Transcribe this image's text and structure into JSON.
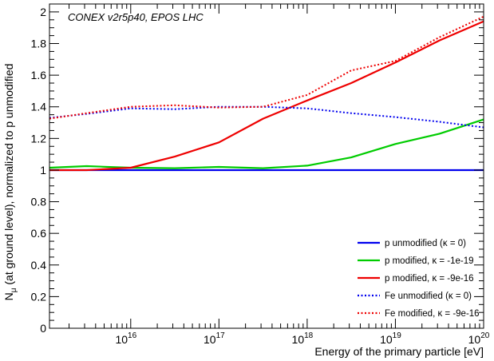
{
  "chart_data": {
    "type": "line",
    "title": "",
    "annotation": "CONEX v2r5p40, EPOS LHC",
    "xlabel": "Energy of the primary particle [eV]",
    "ylabel_main": "N",
    "ylabel_sub": "μ",
    "ylabel_rest": " (at ground level), normalized to p unmodified",
    "x_scale": "log",
    "xlim": [
      1200000000000000.0,
      1e+20
    ],
    "ylim": [
      0,
      2.05
    ],
    "grid": false,
    "legend_position": "bottom-right",
    "y_ticks": [
      0,
      0.2,
      0.4,
      0.6,
      0.8,
      1,
      1.2,
      1.4,
      1.6,
      1.8,
      2
    ],
    "y_tick_labels": [
      "0",
      "0.2",
      "0.4",
      "0.6",
      "0.8",
      "1",
      "1.2",
      "1.4",
      "1.6",
      "1.8",
      "2"
    ],
    "x_major_ticks": [
      {
        "value": 1e+16,
        "base": "10",
        "exp": "16"
      },
      {
        "value": 1e+17,
        "base": "10",
        "exp": "17"
      },
      {
        "value": 1e+18,
        "base": "10",
        "exp": "18"
      },
      {
        "value": 1e+19,
        "base": "10",
        "exp": "19"
      },
      {
        "value": 1e+20,
        "base": "10",
        "exp": "20"
      }
    ],
    "series": [
      {
        "name": "p unmodified (κ = 0)",
        "color": "#0000ee",
        "style": "solid",
        "x": [
          1200000000000000.0,
          3160000000000000.0,
          1e+16,
          3.16e+16,
          1e+17,
          3.16e+17,
          1e+18,
          3.16e+18,
          1e+19,
          3.16e+19,
          1e+20
        ],
        "y": [
          1.0,
          1.0,
          1.0,
          1.0,
          1.0,
          1.0,
          1.0,
          1.0,
          1.0,
          1.0,
          1.0
        ]
      },
      {
        "name": "p modified, κ = -1e-19",
        "color": "#00cc00",
        "style": "solid",
        "x": [
          1200000000000000.0,
          3160000000000000.0,
          1e+16,
          3.16e+16,
          1e+17,
          3.16e+17,
          1e+18,
          3.16e+18,
          1e+19,
          3.16e+19,
          1e+20
        ],
        "y": [
          1.015,
          1.025,
          1.015,
          1.012,
          1.02,
          1.012,
          1.028,
          1.08,
          1.165,
          1.23,
          1.32
        ]
      },
      {
        "name": "p modified, κ = -9e-16",
        "color": "#ee0000",
        "style": "solid",
        "x": [
          1200000000000000.0,
          3160000000000000.0,
          1e+16,
          3.16e+16,
          1e+17,
          3.16e+17,
          1e+18,
          3.16e+18,
          1e+19,
          3.16e+19,
          1e+20
        ],
        "y": [
          1.0,
          1.0,
          1.015,
          1.085,
          1.175,
          1.325,
          1.44,
          1.55,
          1.68,
          1.82,
          1.94
        ]
      },
      {
        "name": "Fe unmodified (κ = 0)",
        "color": "#0000ee",
        "style": "dotted",
        "x": [
          1200000000000000.0,
          3160000000000000.0,
          1e+16,
          3.16e+16,
          1e+17,
          3.16e+17,
          1e+18,
          3.16e+18,
          1e+19,
          3.16e+19,
          1e+20
        ],
        "y": [
          1.33,
          1.355,
          1.39,
          1.385,
          1.4,
          1.4,
          1.39,
          1.36,
          1.335,
          1.305,
          1.27
        ]
      },
      {
        "name": "Fe modified, κ = -9e-16",
        "color": "#ee0000",
        "style": "dotted",
        "x": [
          1200000000000000.0,
          3160000000000000.0,
          1e+16,
          3.16e+16,
          1e+17,
          3.16e+17,
          1e+18,
          3.16e+18,
          1e+19,
          3.16e+19,
          1e+20
        ],
        "y": [
          1.325,
          1.36,
          1.4,
          1.41,
          1.395,
          1.4,
          1.475,
          1.63,
          1.69,
          1.84,
          1.97
        ]
      }
    ]
  }
}
